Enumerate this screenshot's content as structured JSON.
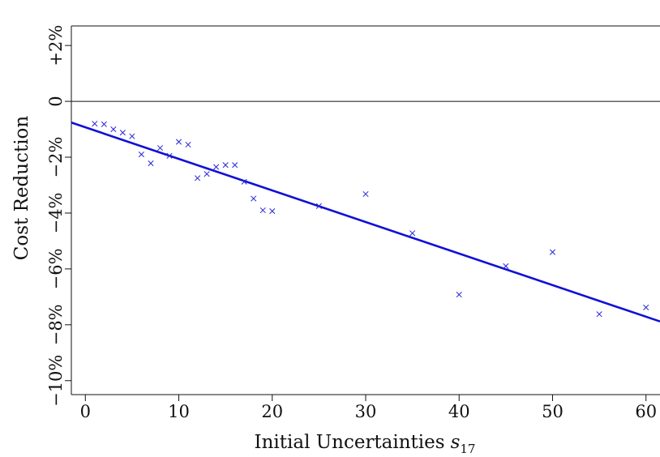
{
  "chart_data": {
    "type": "scatter",
    "xlabel": "Initial Uncertainties",
    "xlabel_symbol": "s",
    "xlabel_subscript": "17",
    "ylabel": "Cost Reduction",
    "xlim": [
      -1.5,
      61.5
    ],
    "ylim": [
      -10.5,
      2.7
    ],
    "x_ticks": [
      0,
      10,
      20,
      30,
      40,
      50,
      60
    ],
    "y_ticks": [
      {
        "value": 2,
        "label": "+2%"
      },
      {
        "value": 0,
        "label": "0"
      },
      {
        "value": -2,
        "label": "−2%"
      },
      {
        "value": -4,
        "label": "−4%"
      },
      {
        "value": -6,
        "label": "−6%"
      },
      {
        "value": -8,
        "label": "−8%"
      },
      {
        "value": -10,
        "label": "−10%"
      }
    ],
    "grid": false,
    "reference_line_y": 0,
    "points": [
      {
        "x": 1,
        "y": -0.8
      },
      {
        "x": 2,
        "y": -0.82
      },
      {
        "x": 3,
        "y": -1.0
      },
      {
        "x": 4,
        "y": -1.12
      },
      {
        "x": 5,
        "y": -1.25
      },
      {
        "x": 6,
        "y": -1.9
      },
      {
        "x": 7,
        "y": -2.22
      },
      {
        "x": 8,
        "y": -1.67
      },
      {
        "x": 9,
        "y": -1.95
      },
      {
        "x": 10,
        "y": -1.45
      },
      {
        "x": 11,
        "y": -1.55
      },
      {
        "x": 12,
        "y": -2.75
      },
      {
        "x": 13,
        "y": -2.6
      },
      {
        "x": 14,
        "y": -2.35
      },
      {
        "x": 15,
        "y": -2.28
      },
      {
        "x": 16,
        "y": -2.28
      },
      {
        "x": 17,
        "y": -2.88
      },
      {
        "x": 18,
        "y": -3.48
      },
      {
        "x": 19,
        "y": -3.9
      },
      {
        "x": 20,
        "y": -3.93
      },
      {
        "x": 25,
        "y": -3.75
      },
      {
        "x": 30,
        "y": -3.32
      },
      {
        "x": 35,
        "y": -4.72
      },
      {
        "x": 40,
        "y": -6.92
      },
      {
        "x": 45,
        "y": -5.9
      },
      {
        "x": 50,
        "y": -5.4
      },
      {
        "x": 55,
        "y": -7.62
      },
      {
        "x": 60,
        "y": -7.38
      }
    ],
    "fit_line": {
      "x": [
        -1.5,
        61.5
      ],
      "y": [
        -0.76,
        -7.88
      ]
    },
    "colors": {
      "points": "#2626d9",
      "fit_line": "#1010d6",
      "axes": "#111111"
    }
  }
}
